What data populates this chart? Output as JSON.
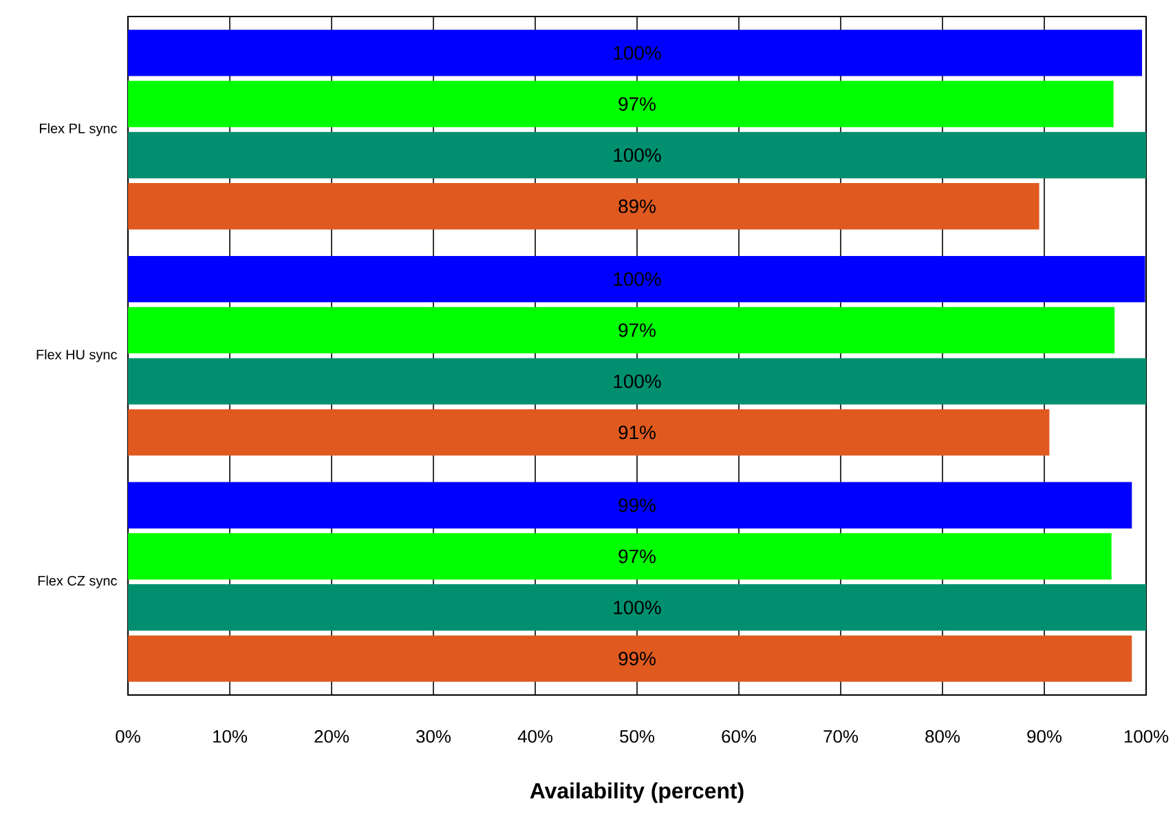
{
  "chart_data": {
    "type": "bar",
    "orientation": "horizontal",
    "xlabel": "Availability (percent)",
    "categories": [
      "Flex PL sync",
      "Flex HU sync",
      "Flex CZ sync"
    ],
    "series": [
      {
        "color": "#0000ff",
        "values": [
          99.6,
          99.9,
          98.6
        ],
        "value_labels": [
          "100%",
          "100%",
          "99%"
        ]
      },
      {
        "color": "#00ff00",
        "values": [
          96.8,
          96.9,
          96.6
        ],
        "value_labels": [
          "97%",
          "97%",
          "97%"
        ]
      },
      {
        "color": "#009070",
        "values": [
          100,
          100,
          100
        ],
        "value_labels": [
          "100%",
          "100%",
          "100%"
        ]
      },
      {
        "color": "#e05a20",
        "values": [
          89.5,
          90.5,
          98.6
        ],
        "value_labels": [
          "89%",
          "91%",
          "99%"
        ]
      }
    ],
    "xlim": [
      0,
      100
    ],
    "xticks": [
      {
        "value": 0,
        "label": "0%"
      },
      {
        "value": 10,
        "label": "10%"
      },
      {
        "value": 20,
        "label": "20%"
      },
      {
        "value": 30,
        "label": "30%"
      },
      {
        "value": 40,
        "label": "40%"
      },
      {
        "value": 50,
        "label": "50%"
      },
      {
        "value": 60,
        "label": "60%"
      },
      {
        "value": 70,
        "label": "70%"
      },
      {
        "value": 80,
        "label": "80%"
      },
      {
        "value": 90,
        "label": "90%"
      },
      {
        "value": 100,
        "label": "100%"
      }
    ],
    "grid": "x"
  }
}
